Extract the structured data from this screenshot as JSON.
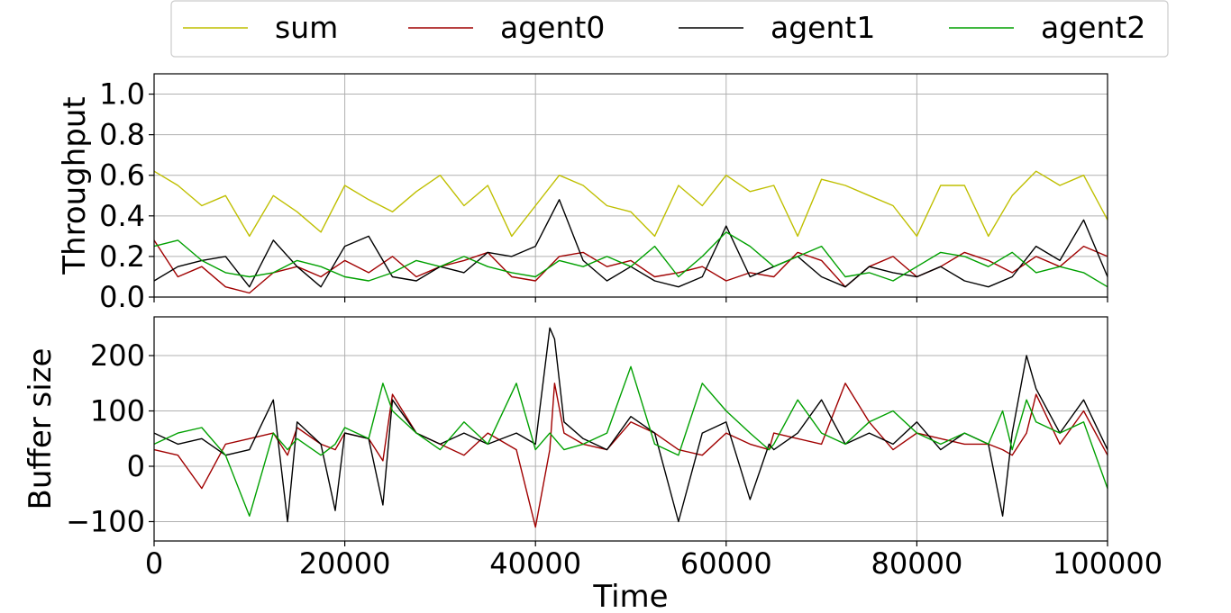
{
  "chart_data": [
    {
      "type": "line",
      "panel": "top",
      "title": "",
      "xlabel": "",
      "ylabel": "Throughput",
      "xlim": [
        0,
        100000
      ],
      "ylim": [
        0,
        1.1
      ],
      "yticks": [
        0.0,
        0.2,
        0.4,
        0.6,
        0.8,
        1.0
      ],
      "ytick_labels": [
        "0.0",
        "0.2",
        "0.4",
        "0.6",
        "0.8",
        "1.0"
      ],
      "grid": true,
      "legend": {
        "placement": "top-center, above plots",
        "entries": [
          "sum",
          "agent0",
          "agent1",
          "agent2"
        ]
      },
      "x": [
        0,
        2500,
        5000,
        7500,
        10000,
        12500,
        15000,
        17500,
        20000,
        22500,
        25000,
        27500,
        30000,
        32500,
        35000,
        37500,
        40000,
        42500,
        45000,
        47500,
        50000,
        52500,
        55000,
        57500,
        60000,
        62500,
        65000,
        67500,
        70000,
        72500,
        75000,
        77500,
        80000,
        82500,
        85000,
        87500,
        90000,
        92500,
        95000,
        97500,
        100000
      ],
      "series": [
        {
          "name": "sum",
          "color": "#bfbf00",
          "values": [
            0.62,
            0.55,
            0.45,
            0.5,
            0.3,
            0.5,
            0.42,
            0.32,
            0.55,
            0.48,
            0.42,
            0.52,
            0.6,
            0.45,
            0.55,
            0.3,
            0.45,
            0.6,
            0.55,
            0.45,
            0.42,
            0.3,
            0.55,
            0.45,
            0.6,
            0.52,
            0.55,
            0.3,
            0.58,
            0.55,
            0.5,
            0.45,
            0.3,
            0.55,
            0.55,
            0.3,
            0.5,
            0.62,
            0.55,
            0.6,
            0.38
          ]
        },
        {
          "name": "agent0",
          "color": "#a00000",
          "values": [
            0.28,
            0.1,
            0.15,
            0.05,
            0.02,
            0.12,
            0.15,
            0.1,
            0.18,
            0.12,
            0.2,
            0.1,
            0.15,
            0.18,
            0.22,
            0.1,
            0.08,
            0.2,
            0.22,
            0.15,
            0.18,
            0.1,
            0.12,
            0.15,
            0.08,
            0.12,
            0.1,
            0.22,
            0.18,
            0.05,
            0.15,
            0.2,
            0.1,
            0.15,
            0.22,
            0.18,
            0.12,
            0.2,
            0.15,
            0.25,
            0.2
          ]
        },
        {
          "name": "agent1",
          "color": "#000000",
          "values": [
            0.08,
            0.15,
            0.18,
            0.2,
            0.05,
            0.28,
            0.15,
            0.05,
            0.25,
            0.3,
            0.1,
            0.08,
            0.15,
            0.12,
            0.22,
            0.2,
            0.25,
            0.48,
            0.18,
            0.08,
            0.15,
            0.08,
            0.05,
            0.1,
            0.35,
            0.1,
            0.15,
            0.2,
            0.1,
            0.05,
            0.15,
            0.12,
            0.1,
            0.15,
            0.08,
            0.05,
            0.1,
            0.25,
            0.18,
            0.38,
            0.1
          ]
        },
        {
          "name": "agent2",
          "color": "#00a000",
          "values": [
            0.25,
            0.28,
            0.18,
            0.12,
            0.1,
            0.12,
            0.18,
            0.15,
            0.1,
            0.08,
            0.12,
            0.18,
            0.15,
            0.2,
            0.15,
            0.12,
            0.1,
            0.18,
            0.15,
            0.2,
            0.15,
            0.25,
            0.1,
            0.2,
            0.32,
            0.25,
            0.15,
            0.2,
            0.25,
            0.1,
            0.12,
            0.08,
            0.15,
            0.22,
            0.2,
            0.15,
            0.22,
            0.12,
            0.15,
            0.12,
            0.05
          ]
        }
      ]
    },
    {
      "type": "line",
      "panel": "bottom",
      "title": "",
      "xlabel": "Time",
      "ylabel": "Buffer size",
      "xlim": [
        0,
        100000
      ],
      "ylim": [
        -135,
        270
      ],
      "xticks": [
        0,
        20000,
        40000,
        60000,
        80000,
        100000
      ],
      "xtick_labels": [
        "0",
        "20000",
        "40000",
        "60000",
        "80000",
        "100000"
      ],
      "yticks": [
        -100,
        0,
        100,
        200
      ],
      "ytick_labels": [
        "−100",
        "0",
        "100",
        "200"
      ],
      "grid": true,
      "x": [
        0,
        2500,
        5000,
        7500,
        10000,
        12500,
        14000,
        15000,
        17500,
        19000,
        20000,
        22500,
        24000,
        25000,
        27500,
        30000,
        32500,
        35000,
        38000,
        40000,
        41500,
        42000,
        43000,
        45000,
        47500,
        50000,
        52500,
        55000,
        57500,
        60000,
        62500,
        64500,
        65000,
        67500,
        70000,
        72500,
        75000,
        77500,
        80000,
        82500,
        85000,
        87500,
        89000,
        90000,
        91500,
        92500,
        95000,
        97500,
        100000
      ],
      "series": [
        {
          "name": "agent0",
          "color": "#a00000",
          "values": [
            30,
            20,
            -40,
            40,
            50,
            60,
            20,
            70,
            40,
            30,
            60,
            50,
            10,
            130,
            60,
            40,
            20,
            60,
            30,
            -110,
            30,
            150,
            60,
            40,
            30,
            80,
            60,
            30,
            20,
            60,
            40,
            30,
            60,
            50,
            40,
            150,
            80,
            30,
            60,
            50,
            40,
            40,
            30,
            20,
            60,
            130,
            40,
            100,
            20
          ]
        },
        {
          "name": "agent1",
          "color": "#000000",
          "values": [
            60,
            40,
            50,
            20,
            30,
            120,
            -100,
            80,
            40,
            -80,
            60,
            50,
            -70,
            120,
            60,
            40,
            60,
            40,
            60,
            40,
            250,
            230,
            80,
            50,
            30,
            90,
            60,
            -100,
            60,
            80,
            -60,
            40,
            30,
            60,
            120,
            40,
            60,
            40,
            80,
            30,
            60,
            40,
            -90,
            60,
            200,
            140,
            60,
            120,
            30
          ]
        },
        {
          "name": "agent2",
          "color": "#00a000",
          "values": [
            40,
            60,
            70,
            20,
            -90,
            60,
            30,
            50,
            20,
            40,
            70,
            50,
            150,
            100,
            60,
            30,
            80,
            40,
            150,
            30,
            60,
            50,
            30,
            40,
            60,
            180,
            40,
            20,
            150,
            100,
            60,
            30,
            40,
            120,
            60,
            40,
            80,
            100,
            60,
            40,
            60,
            40,
            100,
            30,
            120,
            80,
            60,
            80,
            -40
          ]
        }
      ]
    }
  ]
}
